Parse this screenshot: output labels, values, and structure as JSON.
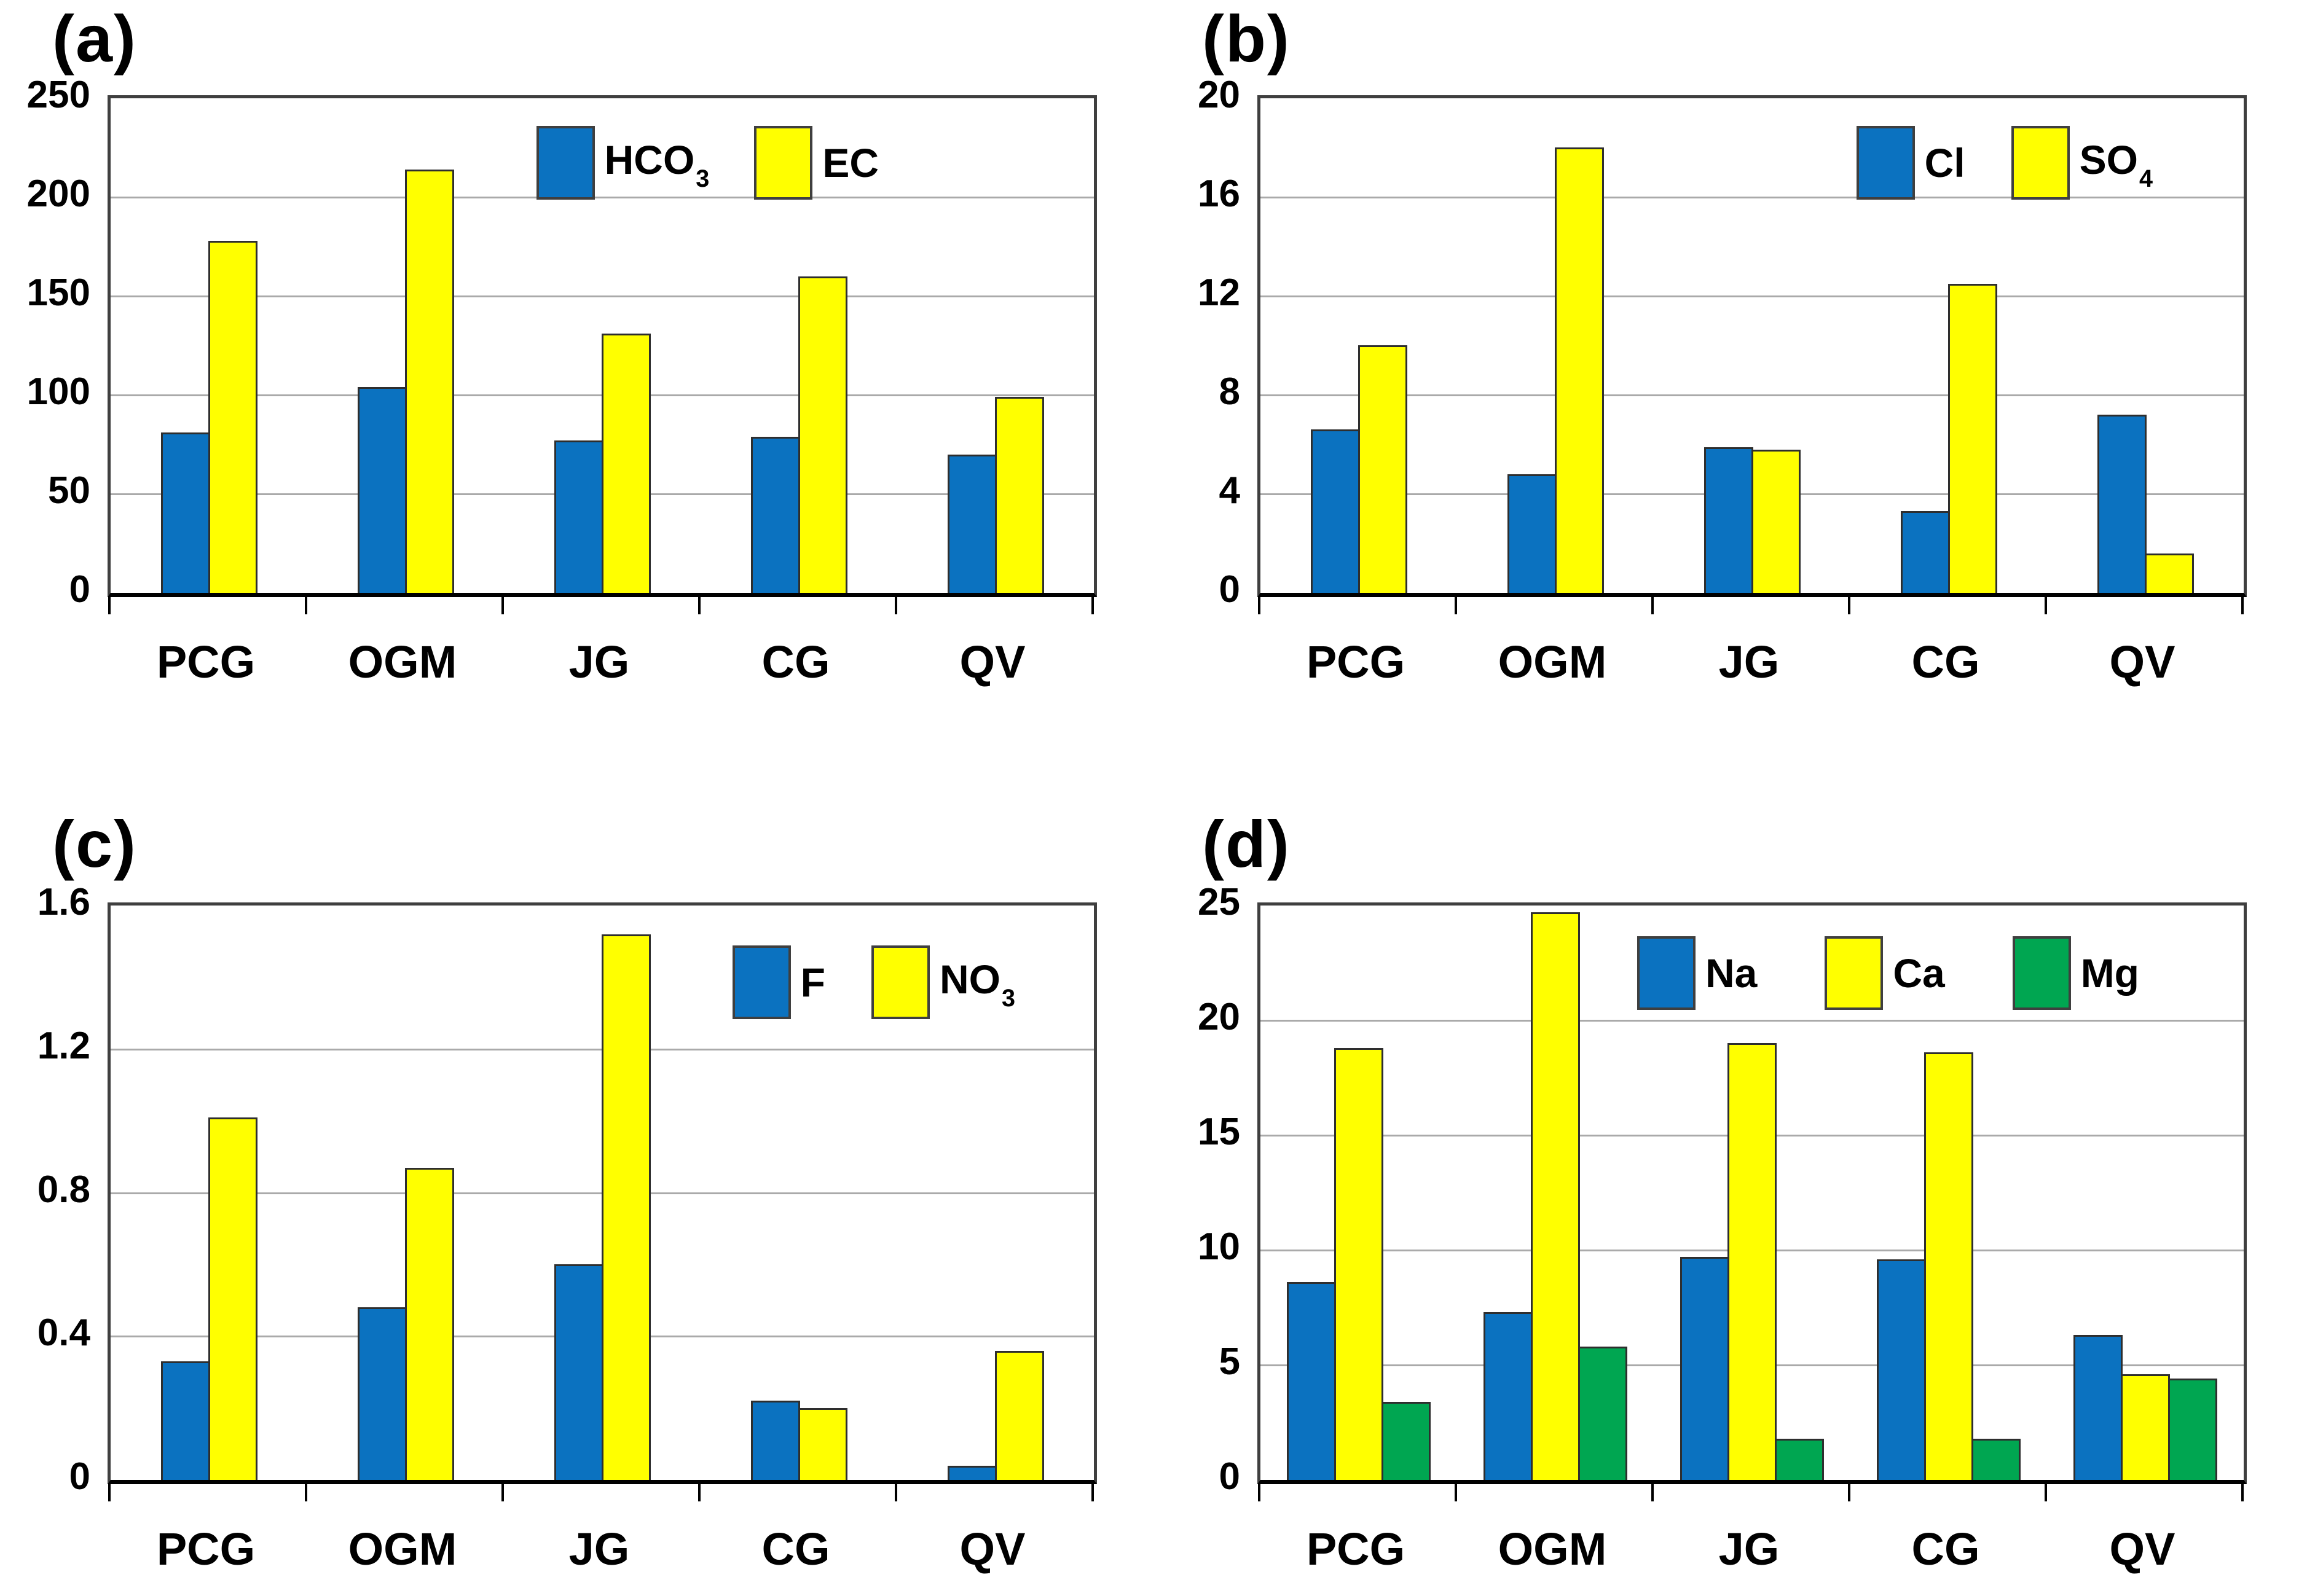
{
  "figure": {
    "background": "#ffffff",
    "categories": [
      "PCG",
      "OGM",
      "JG",
      "CG",
      "QV"
    ]
  },
  "colors": {
    "series_blue": "#0b72c0",
    "series_yellow": "#ffff00",
    "series_green": "#00a651",
    "gridline": "#aaaaaa",
    "plot_border": "#3f3f3f",
    "baseline": "#000000",
    "text": "#000000"
  },
  "chart_data": [
    {
      "type": "bar",
      "panel_label": "(a)",
      "categories": [
        "PCG",
        "OGM",
        "JG",
        "CG",
        "QV"
      ],
      "ylim": [
        0,
        250
      ],
      "yticks": [
        0,
        50,
        100,
        150,
        200,
        250
      ],
      "ytick_labels": [
        "0",
        "50",
        "100",
        "150",
        "200",
        "250"
      ],
      "grid": true,
      "legend_position": "top-right",
      "series": [
        {
          "name": "HCO3",
          "legend_main": "HCO",
          "legend_sub": "3",
          "color": "#0b72c0",
          "values": [
            81,
            104,
            77,
            79,
            70
          ]
        },
        {
          "name": "EC",
          "legend_main": "EC",
          "legend_sub": "",
          "color": "#ffff00",
          "values": [
            178,
            214,
            131,
            160,
            99
          ]
        }
      ]
    },
    {
      "type": "bar",
      "panel_label": "(b)",
      "categories": [
        "PCG",
        "OGM",
        "JG",
        "CG",
        "QV"
      ],
      "ylim": [
        0,
        20
      ],
      "yticks": [
        0,
        4,
        8,
        12,
        16,
        20
      ],
      "ytick_labels": [
        "0",
        "4",
        "8",
        "12",
        "16",
        "20"
      ],
      "grid": true,
      "legend_position": "top-right",
      "series": [
        {
          "name": "Cl",
          "legend_main": "Cl",
          "legend_sub": "",
          "color": "#0b72c0",
          "values": [
            6.6,
            4.8,
            5.9,
            3.3,
            7.2
          ]
        },
        {
          "name": "SO4",
          "legend_main": "SO",
          "legend_sub": "4",
          "color": "#ffff00",
          "values": [
            10.0,
            18.0,
            5.8,
            12.5,
            1.6
          ]
        }
      ]
    },
    {
      "type": "bar",
      "panel_label": "(c)",
      "categories": [
        "PCG",
        "OGM",
        "JG",
        "CG",
        "QV"
      ],
      "ylim": [
        0,
        1.6
      ],
      "yticks": [
        0,
        0.4,
        0.8,
        1.2,
        1.6
      ],
      "ytick_labels": [
        "0",
        "0.4",
        "0.8",
        "1.2",
        "1.6"
      ],
      "grid": true,
      "legend_position": "top-right",
      "series": [
        {
          "name": "F",
          "legend_main": "F",
          "legend_sub": "",
          "color": "#0b72c0",
          "values": [
            0.33,
            0.48,
            0.6,
            0.22,
            0.04
          ]
        },
        {
          "name": "NO3",
          "legend_main": "NO",
          "legend_sub": "3",
          "color": "#ffff00",
          "values": [
            1.01,
            0.87,
            1.52,
            0.2,
            0.36
          ]
        }
      ]
    },
    {
      "type": "bar",
      "panel_label": "(d)",
      "categories": [
        "PCG",
        "OGM",
        "JG",
        "CG",
        "QV"
      ],
      "ylim": [
        0,
        25
      ],
      "yticks": [
        0,
        5,
        10,
        15,
        20,
        25
      ],
      "ytick_labels": [
        "0",
        "5",
        "10",
        "15",
        "20",
        "25"
      ],
      "grid": true,
      "legend_position": "top-right",
      "series": [
        {
          "name": "Na",
          "legend_main": "Na",
          "legend_sub": "",
          "color": "#0b72c0",
          "values": [
            8.6,
            7.3,
            9.7,
            9.6,
            6.3
          ]
        },
        {
          "name": "Ca",
          "legend_main": "Ca",
          "legend_sub": "",
          "color": "#ffff00",
          "values": [
            18.8,
            24.7,
            19.0,
            18.6,
            4.6
          ]
        },
        {
          "name": "Mg",
          "legend_main": "Mg",
          "legend_sub": "",
          "color": "#00a651",
          "values": [
            3.4,
            5.8,
            1.8,
            1.8,
            4.4
          ]
        }
      ]
    }
  ]
}
